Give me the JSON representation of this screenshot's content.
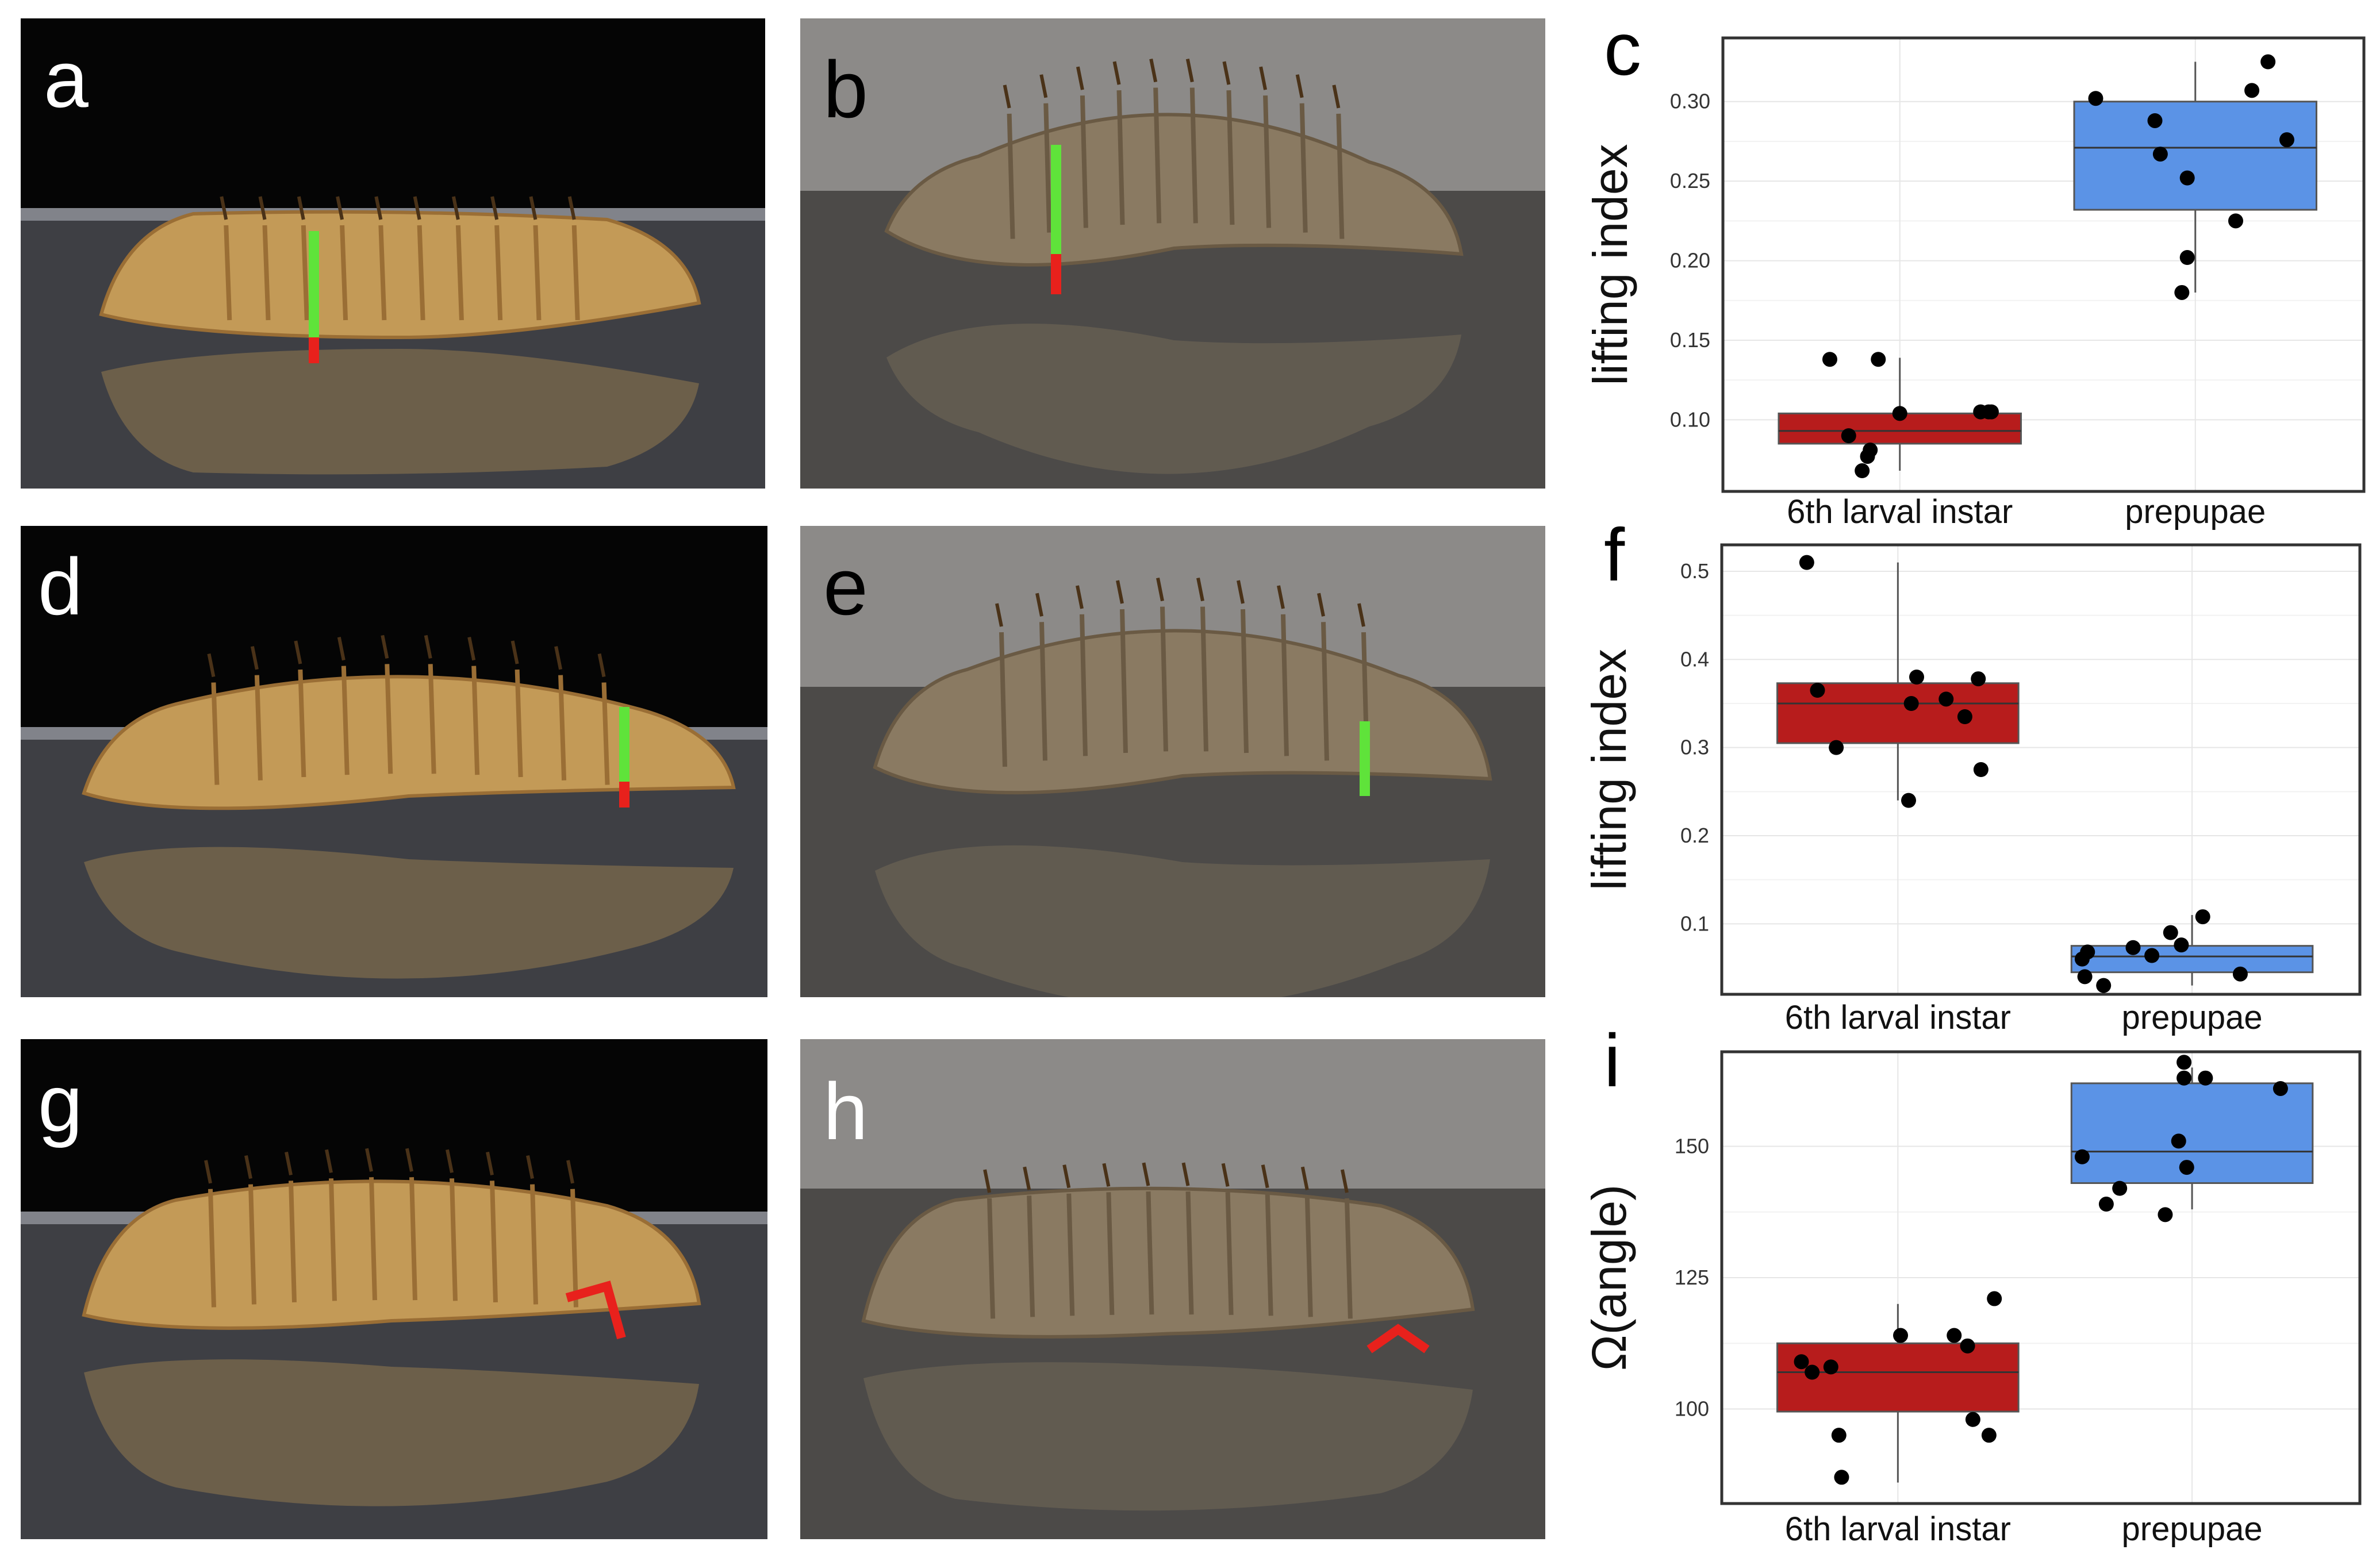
{
  "figure": {
    "photo_panels": [
      {
        "id": "a",
        "label": "a",
        "subject": "6th larval instar",
        "background": "dark-studio",
        "marker": "height",
        "mirror": true
      },
      {
        "id": "b",
        "label": "b",
        "subject": "prepupae",
        "background": "grey",
        "marker": "height",
        "mirror": true
      },
      {
        "id": "d",
        "label": "d",
        "subject": "6th larval instar",
        "background": "dark-studio",
        "marker": "height",
        "mirror": true
      },
      {
        "id": "e",
        "label": "e",
        "subject": "prepupae",
        "background": "grey",
        "marker": "height-green-only",
        "mirror": true
      },
      {
        "id": "g",
        "label": "g",
        "subject": "6th larval instar",
        "background": "dark-studio",
        "marker": "angle",
        "mirror": true
      },
      {
        "id": "h",
        "label": "h",
        "subject": "prepupae",
        "background": "grey",
        "marker": "angle",
        "mirror": true
      }
    ],
    "colors": {
      "larva_red": "#b71c1c",
      "prepupae_blue": "#5b93e6",
      "marker_green": "#5fe33a",
      "marker_red": "#e8211c",
      "point": "#000000",
      "grid": "#e6e6e6",
      "frame": "#333333"
    }
  },
  "chart_data": [
    {
      "panel": "c",
      "label": "c",
      "type": "box-with-jitter",
      "ylabel": "lifting index",
      "categories": [
        "6th larval instar",
        "prepupae"
      ],
      "ylim": [
        0.055,
        0.34
      ],
      "yticks": [
        0.1,
        0.15,
        0.2,
        0.25,
        0.3
      ],
      "ytick_labels": [
        "0.10",
        "0.15",
        "0.20",
        "0.25",
        "0.30"
      ],
      "boxes": [
        {
          "category": "6th larval instar",
          "q1": 0.085,
          "median": 0.093,
          "q3": 0.104,
          "whisker_low": 0.068,
          "whisker_high": 0.139
        },
        {
          "category": "prepupae",
          "q1": 0.232,
          "median": 0.271,
          "q3": 0.3,
          "whisker_low": 0.18,
          "whisker_high": 0.325
        }
      ],
      "points": [
        {
          "category": "6th larval instar",
          "values": [
            0.068,
            0.077,
            0.081,
            0.09,
            0.104,
            0.105,
            0.105,
            0.138,
            0.138,
            0.105
          ],
          "offsets": [
            -0.14,
            -0.12,
            -0.11,
            -0.19,
            0.0,
            0.3,
            0.33,
            -0.26,
            -0.08,
            0.34
          ]
        },
        {
          "category": "prepupae",
          "values": [
            0.18,
            0.202,
            0.225,
            0.252,
            0.267,
            0.276,
            0.288,
            0.302,
            0.307,
            0.325
          ],
          "offsets": [
            -0.05,
            -0.03,
            0.15,
            -0.03,
            -0.13,
            0.34,
            -0.15,
            -0.37,
            0.21,
            0.27
          ]
        }
      ]
    },
    {
      "panel": "f",
      "label": "f",
      "type": "box-with-jitter",
      "ylabel": "lifting index",
      "categories": [
        "6th larval instar",
        "prepupae"
      ],
      "ylim": [
        0.02,
        0.53
      ],
      "yticks": [
        0.1,
        0.2,
        0.3,
        0.4,
        0.5
      ],
      "ytick_labels": [
        "0.1",
        "0.2",
        "0.3",
        "0.4",
        "0.5"
      ],
      "boxes": [
        {
          "category": "6th larval instar",
          "q1": 0.305,
          "median": 0.35,
          "q3": 0.373,
          "whisker_low": 0.24,
          "whisker_high": 0.51
        },
        {
          "category": "prepupae",
          "q1": 0.045,
          "median": 0.063,
          "q3": 0.075,
          "whisker_low": 0.03,
          "whisker_high": 0.11
        }
      ],
      "points": [
        {
          "category": "6th larval instar",
          "values": [
            0.51,
            0.365,
            0.3,
            0.38,
            0.35,
            0.355,
            0.335,
            0.378,
            0.275,
            0.24
          ],
          "offsets": [
            -0.34,
            -0.3,
            -0.23,
            0.07,
            0.05,
            0.18,
            0.25,
            0.3,
            0.31,
            0.04
          ]
        },
        {
          "category": "prepupae",
          "values": [
            0.06,
            0.04,
            0.068,
            0.03,
            0.073,
            0.064,
            0.09,
            0.076,
            0.108,
            0.043
          ],
          "offsets": [
            -0.41,
            -0.4,
            -0.39,
            -0.33,
            -0.22,
            -0.15,
            -0.08,
            -0.04,
            0.04,
            0.18
          ]
        }
      ]
    },
    {
      "panel": "i",
      "label": "i",
      "type": "box-with-jitter",
      "ylabel": "Ω(angle)",
      "categories": [
        "6th larval instar",
        "prepupae"
      ],
      "ylim": [
        82,
        168
      ],
      "yticks": [
        100,
        125,
        150
      ],
      "ytick_labels": [
        "100",
        "125",
        "150"
      ],
      "boxes": [
        {
          "category": "6th larval instar",
          "q1": 99.5,
          "median": 107,
          "q3": 112.5,
          "whisker_low": 86,
          "whisker_high": 120
        },
        {
          "category": "prepupae",
          "q1": 143,
          "median": 149,
          "q3": 162,
          "whisker_low": 138,
          "whisker_high": 165
        }
      ],
      "points": [
        {
          "category": "6th larval instar",
          "values": [
            109,
            107,
            108,
            95,
            114,
            114,
            112,
            98,
            95,
            121,
            87
          ],
          "offsets": [
            -0.36,
            -0.32,
            -0.25,
            -0.22,
            0.01,
            0.21,
            0.26,
            0.28,
            0.34,
            0.36,
            -0.21
          ]
        },
        {
          "category": "prepupae",
          "values": [
            148,
            139,
            142,
            137,
            146,
            151,
            163,
            163,
            166,
            161
          ],
          "offsets": [
            -0.41,
            -0.32,
            -0.27,
            -0.1,
            -0.02,
            -0.05,
            -0.03,
            0.05,
            -0.03,
            0.33
          ]
        }
      ]
    }
  ]
}
